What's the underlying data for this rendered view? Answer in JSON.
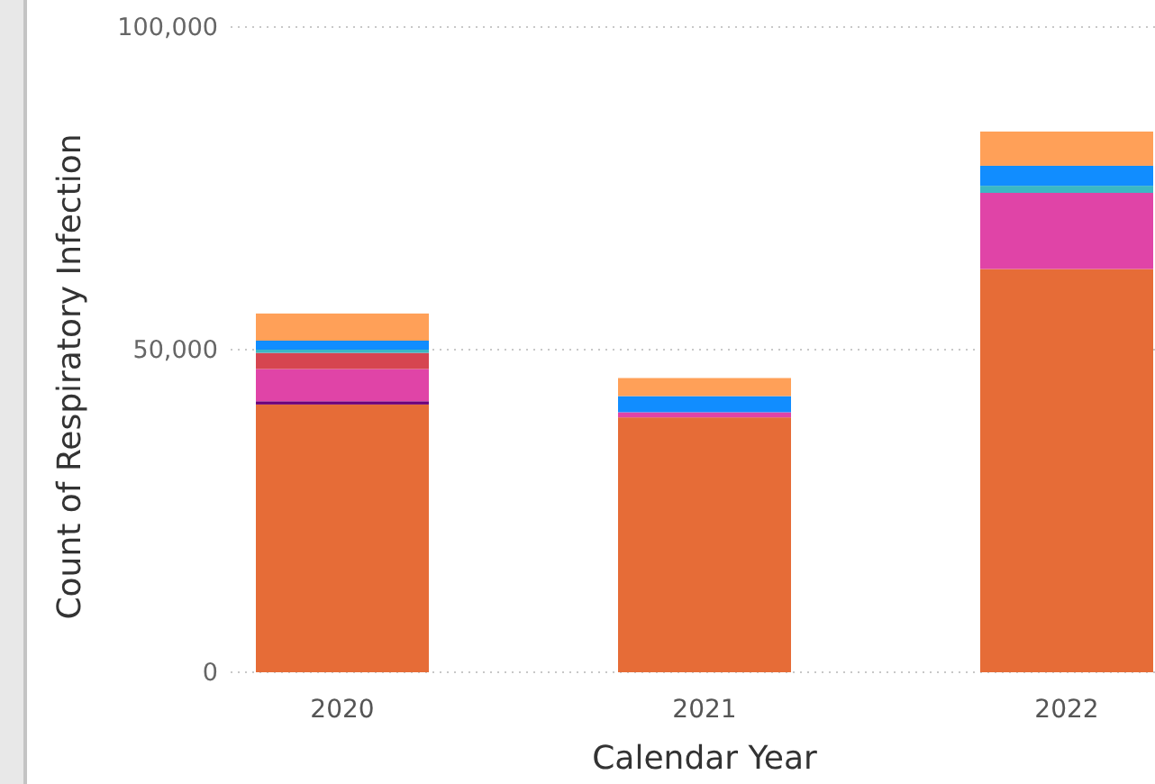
{
  "chart_data": {
    "type": "bar",
    "stacked": true,
    "xlabel": "Calendar Year",
    "ylabel": "Count of Respiratory Infection",
    "categories": [
      "2020",
      "2021",
      "2022"
    ],
    "series": [
      {
        "color": "#e66c37",
        "values": [
          41500,
          39500,
          62500
        ]
      },
      {
        "color": "#6b007b",
        "values": [
          500,
          null,
          null
        ]
      },
      {
        "color": "#e044a7",
        "values": [
          5000,
          800,
          11800
        ]
      },
      {
        "color": "#d64550",
        "values": [
          2500,
          null,
          null
        ]
      },
      {
        "color": "#3bb8c4",
        "values": [
          500,
          null,
          1100
        ]
      },
      {
        "color": "#118dff",
        "values": [
          1400,
          2500,
          3100
        ]
      },
      {
        "color": "#ffa058",
        "values": [
          4200,
          2800,
          5300
        ]
      }
    ],
    "ylim": [
      0,
      100000
    ],
    "yticks": [
      0,
      {
        "value": 50000,
        "label": "50,000"
      },
      {
        "value": 100000,
        "label": "100,000"
      }
    ],
    "grid": "y"
  }
}
